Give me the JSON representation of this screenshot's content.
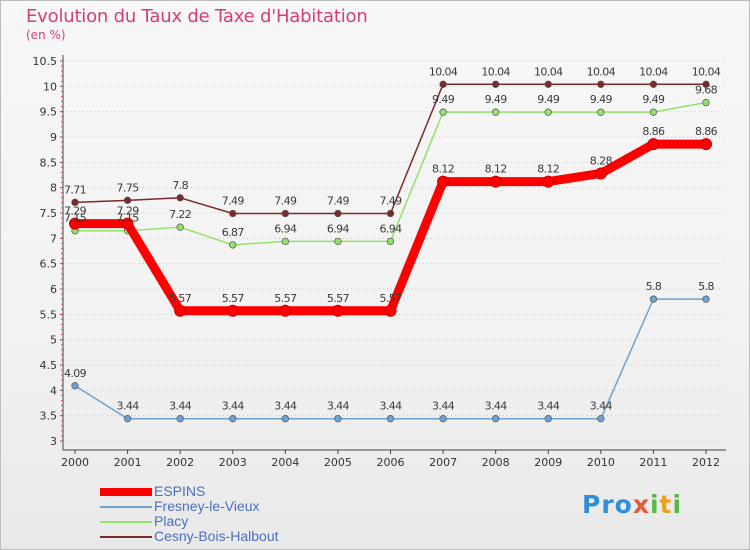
{
  "page": {
    "title": "Evolution du Taux de Taxe d'Habitation",
    "unit": "(en %)"
  },
  "logo": {
    "text": "Proxiti"
  },
  "chart_data": {
    "type": "line",
    "title": "Evolution du Taux de Taxe d'Habitation",
    "subtitle": "(en %)",
    "xlabel": "",
    "ylabel": "",
    "x": [
      "2000",
      "2001",
      "2002",
      "2003",
      "2004",
      "2005",
      "2006",
      "2007",
      "2008",
      "2009",
      "2010",
      "2011",
      "2012"
    ],
    "ylim": [
      3,
      10.5
    ],
    "yticks": [
      3,
      3.5,
      4,
      4.5,
      5,
      5.5,
      6,
      6.5,
      7,
      7.5,
      8,
      8.5,
      9,
      9.5,
      10,
      10.5
    ],
    "grid": "horizontal dotted",
    "legend_position": "bottom-left",
    "series": [
      {
        "name": "ESPINS",
        "color": "#ff0000",
        "values": [
          7.29,
          7.29,
          5.57,
          5.57,
          5.57,
          5.57,
          5.57,
          8.12,
          8.12,
          8.12,
          8.28,
          8.86,
          8.86
        ],
        "labels": [
          "7.29",
          "7.29",
          "5.57",
          "5.57",
          "5.57",
          "5.57",
          "5.57",
          "8.12",
          "8.12",
          "8.12",
          "8.28",
          "8.86",
          "8.86"
        ]
      },
      {
        "name": "Fresney-le-Vieux",
        "color": "#6fa1d1",
        "values": [
          4.09,
          3.44,
          3.44,
          3.44,
          3.44,
          3.44,
          3.44,
          3.44,
          3.44,
          3.44,
          3.44,
          5.8,
          5.8
        ],
        "labels": [
          "4.09",
          "3.44",
          "3.44",
          "3.44",
          "3.44",
          "3.44",
          "3.44",
          "3.44",
          "3.44",
          "3.44",
          "3.44",
          "5.8",
          "5.8"
        ]
      },
      {
        "name": "Placy",
        "color": "#93e06c",
        "values": [
          7.15,
          7.15,
          7.22,
          6.87,
          6.94,
          6.94,
          6.94,
          9.49,
          9.49,
          9.49,
          9.49,
          9.49,
          9.68
        ],
        "labels": [
          "7.15",
          "7.15",
          "7.22",
          "6.87",
          "6.94",
          "6.94",
          "6.94",
          "9.49",
          "9.49",
          "9.49",
          "9.49",
          "9.49",
          "9.68"
        ]
      },
      {
        "name": "Cesny-Bois-Halbout",
        "color": "#7b2a2a",
        "values": [
          7.71,
          7.75,
          7.8,
          7.49,
          7.49,
          7.49,
          7.49,
          10.04,
          10.04,
          10.04,
          10.04,
          10.04,
          10.04
        ],
        "labels": [
          "7.71",
          "7.75",
          "7.8",
          "7.49",
          "7.49",
          "7.49",
          "7.49",
          "10.04",
          "10.04",
          "10.04",
          "10.04",
          "10.04",
          "10.04"
        ]
      }
    ]
  }
}
